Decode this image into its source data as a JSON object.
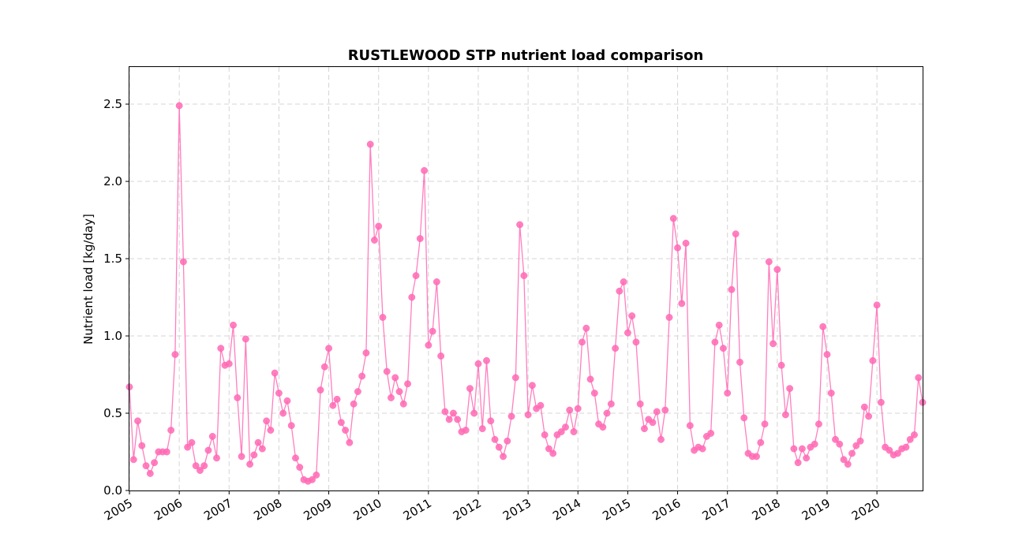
{
  "chart_data": {
    "type": "line",
    "title": "RUSTLEWOOD STP nutrient load comparison",
    "xlabel": "",
    "ylabel": "Nutrient load [kg/day]",
    "x_tick_labels": [
      "2005",
      "2006",
      "2007",
      "2008",
      "2009",
      "2010",
      "2011",
      "2012",
      "2013",
      "2014",
      "2015",
      "2016",
      "2017",
      "2018",
      "2019",
      "2020"
    ],
    "y_tick_labels": [
      "0.0",
      "0.5",
      "1.0",
      "1.5",
      "2.0",
      "2.5"
    ],
    "y_ticks": [
      0,
      0.5,
      1.0,
      1.5,
      2.0,
      2.5
    ],
    "xlim": [
      "2005-01",
      "2020-12"
    ],
    "ylim": [
      0,
      2.74
    ],
    "grid": true,
    "colors": {
      "series": "#ff69b4"
    },
    "series": [
      {
        "start": "2005-01",
        "frequency": "monthly",
        "values": [
          0.67,
          0.2,
          0.45,
          0.29,
          0.16,
          0.11,
          0.18,
          0.25,
          0.25,
          0.25,
          0.39,
          0.88,
          2.49,
          1.48,
          0.28,
          0.31,
          0.16,
          0.13,
          0.16,
          0.26,
          0.35,
          0.21,
          0.92,
          0.81,
          0.82,
          1.07,
          0.6,
          0.22,
          0.98,
          0.17,
          0.23,
          0.31,
          0.27,
          0.45,
          0.39,
          0.76,
          0.63,
          0.5,
          0.58,
          0.42,
          0.21,
          0.15,
          0.07,
          0.06,
          0.07,
          0.1,
          0.65,
          0.8,
          0.92,
          0.55,
          0.59,
          0.44,
          0.39,
          0.31,
          0.56,
          0.64,
          0.74,
          0.89,
          2.24,
          1.62,
          1.71,
          1.12,
          0.77,
          0.6,
          0.73,
          0.64,
          0.56,
          0.69,
          1.25,
          1.39,
          1.63,
          2.07,
          0.94,
          1.03,
          1.35,
          0.87,
          0.51,
          0.46,
          0.5,
          0.46,
          0.38,
          0.39,
          0.66,
          0.5,
          0.82,
          0.4,
          0.84,
          0.45,
          0.33,
          0.28,
          0.22,
          0.32,
          0.48,
          0.73,
          1.72,
          1.39,
          0.49,
          0.68,
          0.53,
          0.55,
          0.36,
          0.27,
          0.24,
          0.36,
          0.38,
          0.41,
          0.52,
          0.38,
          0.53,
          0.96,
          1.05,
          0.72,
          0.63,
          0.43,
          0.41,
          0.5,
          0.56,
          0.92,
          1.29,
          1.35,
          1.02,
          1.13,
          0.96,
          0.56,
          0.4,
          0.46,
          0.44,
          0.51,
          0.33,
          0.52,
          1.12,
          1.76,
          1.57,
          1.21,
          1.6,
          0.42,
          0.26,
          0.28,
          0.27,
          0.35,
          0.37,
          0.96,
          1.07,
          0.92,
          0.63,
          1.3,
          1.66,
          0.83,
          0.47,
          0.24,
          0.22,
          0.22,
          0.31,
          0.43,
          1.48,
          0.95,
          1.43,
          0.81,
          0.49,
          0.66,
          0.27,
          0.18,
          0.27,
          0.21,
          0.28,
          0.3,
          0.43,
          1.06,
          0.88,
          0.63,
          0.33,
          0.3,
          0.2,
          0.17,
          0.24,
          0.29,
          0.32,
          0.54,
          0.48,
          0.84,
          1.2,
          0.57,
          0.28,
          0.26,
          0.23,
          0.24,
          0.27,
          0.28,
          0.33,
          0.36,
          0.73,
          0.57
        ]
      }
    ]
  }
}
